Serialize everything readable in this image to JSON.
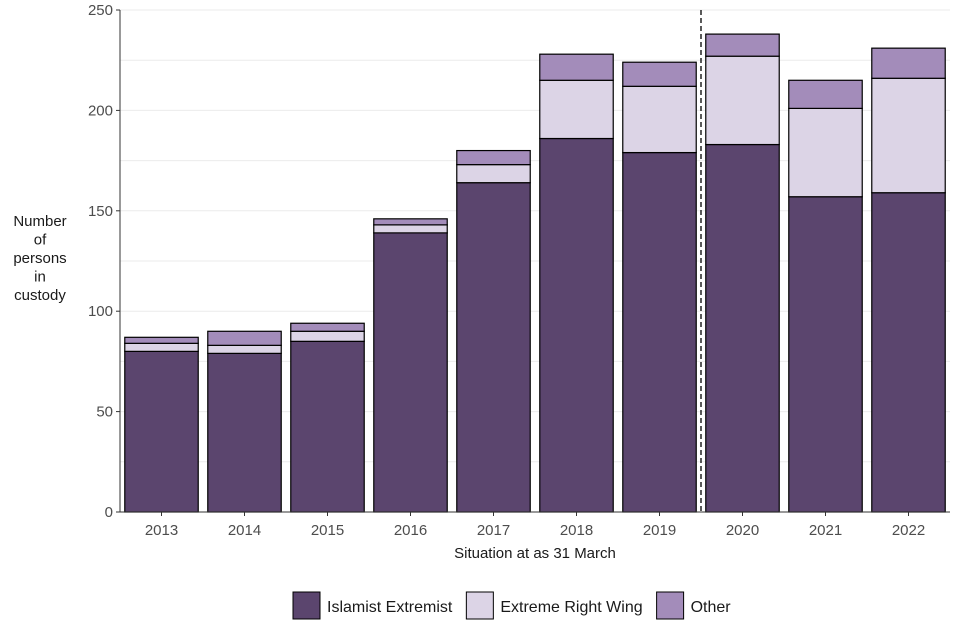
{
  "chart_data": {
    "type": "bar",
    "stacked": true,
    "categories": [
      "2013",
      "2014",
      "2015",
      "2016",
      "2017",
      "2018",
      "2019",
      "2020",
      "2021",
      "2022"
    ],
    "series": [
      {
        "name": "Islamist Extremist",
        "color": "#5b456e",
        "values": [
          80,
          79,
          85,
          139,
          164,
          186,
          179,
          183,
          157,
          159
        ]
      },
      {
        "name": "Extreme Right Wing",
        "color": "#dcd4e6",
        "values": [
          4,
          4,
          5,
          4,
          9,
          29,
          33,
          44,
          44,
          57
        ]
      },
      {
        "name": "Other",
        "color": "#a38cba",
        "values": [
          3,
          7,
          4,
          3,
          7,
          13,
          12,
          11,
          14,
          15
        ]
      }
    ],
    "xlabel": "Situation at as 31 March",
    "ylabel": [
      "Number",
      "of",
      "persons",
      "in",
      "custody"
    ],
    "ylim": [
      0,
      250
    ],
    "yticks": [
      0,
      50,
      100,
      150,
      200,
      250
    ],
    "grid": true,
    "legend_position": "bottom",
    "annotation": {
      "type": "dashed-vertical-line",
      "between": [
        "2019",
        "2020"
      ]
    }
  }
}
